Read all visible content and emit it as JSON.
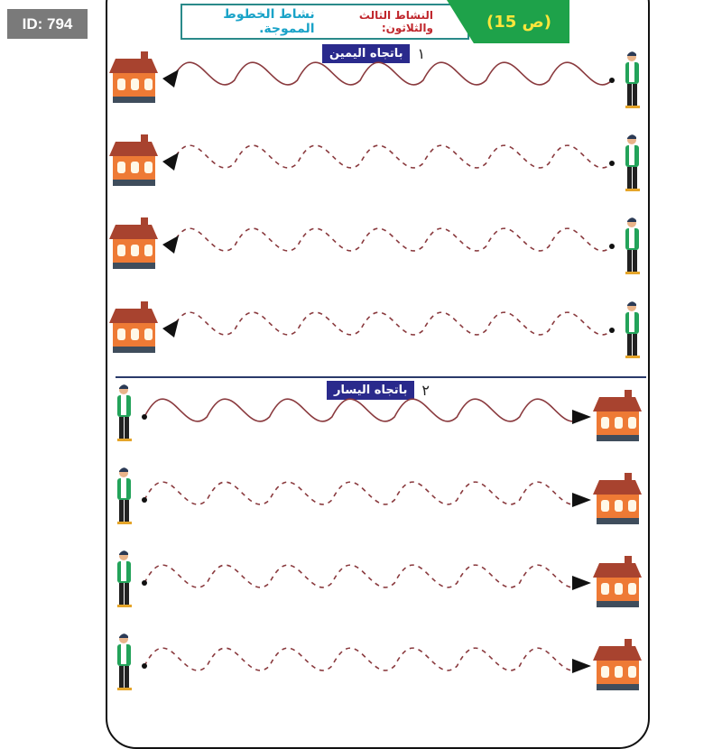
{
  "badge": "ID: 794",
  "header": {
    "page_label": "(ص 15)",
    "activity_number": "النشاط الثالث والثلاثون:",
    "activity_title": "نشاط الخطوط المموجة."
  },
  "sections": [
    {
      "number": "١",
      "label": "باتجاه اليمين",
      "direction": "right-to-left",
      "rows": [
        "solid",
        "dashed",
        "dashed",
        "dashed"
      ]
    },
    {
      "number": "٢",
      "label": "باتجاه اليسار",
      "direction": "left-to-right",
      "rows": [
        "solid",
        "dashed",
        "dashed",
        "dashed"
      ]
    }
  ],
  "colors": {
    "wave": "#8a3a3e",
    "green": "#1ea24a",
    "section_label": "#2a2a8c",
    "house_wall": "#ee7a35",
    "house_roof": "#a8432f"
  }
}
